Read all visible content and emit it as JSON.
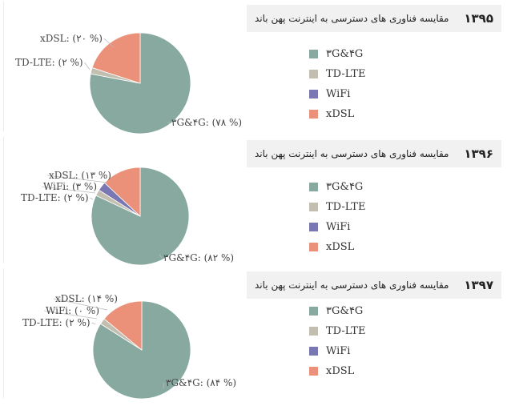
{
  "chart_data": [
    {
      "type": "pie",
      "title": "مقایسه  فناوری های دسترسی  به اینترنت پهن باند",
      "year": "۱۳۹۵",
      "slices": [
        {
          "name": "۳G&۴G",
          "value": 78,
          "label": "۳G&۴G: (۷۸ %)",
          "color": "#87a9a0"
        },
        {
          "name": "TD-LTE",
          "value": 2,
          "label": "TD-LTE: (۲ %)",
          "color": "#c2bfb0"
        },
        {
          "name": "WiFi",
          "value": 0,
          "label": "",
          "color": "#7a78b3"
        },
        {
          "name": "xDSL",
          "value": 20,
          "label": "xDSL: (۲۰ %)",
          "color": "#eb917a"
        }
      ],
      "legend": [
        "۳G&۴G",
        "TD-LTE",
        "WiFi",
        "xDSL"
      ]
    },
    {
      "type": "pie",
      "title": "مقایسه  فناوری های دسترسی  به اینترنت پهن باند",
      "year": "۱۳۹۶",
      "slices": [
        {
          "name": "۳G&۴G",
          "value": 82,
          "label": "۳G&۴G: (۸۲ %)",
          "color": "#87a9a0"
        },
        {
          "name": "TD-LTE",
          "value": 2,
          "label": "TD-LTE: (۲ %)",
          "color": "#c2bfb0"
        },
        {
          "name": "WiFi",
          "value": 3,
          "label": "WiFi: (۳ %)",
          "color": "#7a78b3"
        },
        {
          "name": "xDSL",
          "value": 13,
          "label": "xDSL: (۱۳ %)",
          "color": "#eb917a"
        }
      ],
      "legend": [
        "۳G&۴G",
        "TD-LTE",
        "WiFi",
        "xDSL"
      ]
    },
    {
      "type": "pie",
      "title": "مقایسه  فناوری های دسترسی  به اینترنت پهن باند",
      "year": "۱۳۹۷",
      "slices": [
        {
          "name": "۳G&۴G",
          "value": 84,
          "label": "۳G&۴G: (۸۴ %)",
          "color": "#87a9a0"
        },
        {
          "name": "TD-LTE",
          "value": 2,
          "label": "TD-LTE: (۲ %)",
          "color": "#c2bfb0"
        },
        {
          "name": "WiFi",
          "value": 0,
          "label": "WiFi: (۰ %)",
          "color": "#7a78b3"
        },
        {
          "name": "xDSL",
          "value": 14,
          "label": "xDSL: (۱۴ %)",
          "color": "#eb917a"
        }
      ],
      "legend": [
        "۳G&۴G",
        "TD-LTE",
        "WiFi",
        "xDSL"
      ]
    }
  ]
}
